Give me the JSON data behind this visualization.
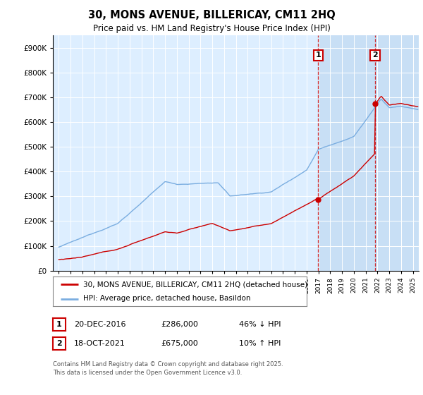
{
  "title": "30, MONS AVENUE, BILLERICAY, CM11 2HQ",
  "subtitle": "Price paid vs. HM Land Registry's House Price Index (HPI)",
  "hpi_label": "HPI: Average price, detached house, Basildon",
  "property_label": "30, MONS AVENUE, BILLERICAY, CM11 2HQ (detached house)",
  "footnote": "Contains HM Land Registry data © Crown copyright and database right 2025.\nThis data is licensed under the Open Government Licence v3.0.",
  "sale1_label": "20-DEC-2016",
  "sale1_price": "£286,000",
  "sale1_note": "46% ↓ HPI",
  "sale2_label": "18-OCT-2021",
  "sale2_price": "£675,000",
  "sale2_note": "10% ↑ HPI",
  "sale1_year": 2016.97,
  "sale2_year": 2021.79,
  "sale1_price_val": 286000,
  "sale2_price_val": 675000,
  "hpi_color": "#7aade0",
  "property_color": "#cc0000",
  "vline_color": "#cc0000",
  "background_color": "#ddeeff",
  "shade_color": "#c8dff5",
  "ylim": [
    0,
    950000
  ],
  "xlim_start": 1994.5,
  "xlim_end": 2025.5,
  "yticks": [
    0,
    100000,
    200000,
    300000,
    400000,
    500000,
    600000,
    700000,
    800000,
    900000
  ]
}
